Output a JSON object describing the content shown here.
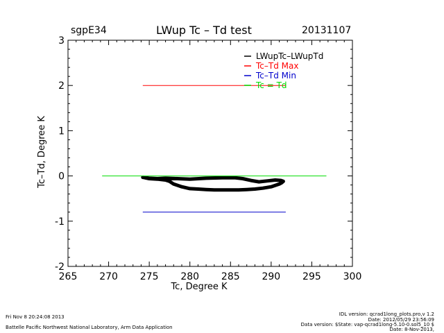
{
  "header": {
    "station": "sgpE34",
    "title": "LWup Tc – Td test",
    "date": "20131107"
  },
  "footer": {
    "left_line1": "Fri Nov  8 20:24:08 2013",
    "left_line2": "Battelle Pacific Northwest National Laboratory, Arm Data Application",
    "right_line1": "IDL version: qcrad1long_plots.pro,v 1.2",
    "right_line2": "Date: 2012/05/29 23:56:09",
    "right_line3": "Data version: $State: vap-qcrad1long-5.10-0.sol5_10 $",
    "right_line4": "Date: 8-Nov-2013,"
  },
  "chart_data": {
    "type": "line",
    "title": "LWup Tc – Td test",
    "xlabel": "Tc, Degree K",
    "ylabel": "Tc–Td, Degree K",
    "xlim": [
      265,
      300
    ],
    "ylim": [
      -2,
      3
    ],
    "xticks": [
      265,
      270,
      275,
      280,
      285,
      290,
      295,
      300
    ],
    "yticks": [
      -2,
      -1,
      0,
      1,
      2,
      3
    ],
    "legend_position": "top-right",
    "series": [
      {
        "name": "LWupTc–LWupTd",
        "color": "#000000",
        "style": "scatter-thick",
        "x": [
          274.2,
          275.0,
          276.0,
          277.0,
          277.5,
          278.0,
          279.0,
          280.0,
          281.0,
          282.0,
          283.0,
          284.0,
          285.0,
          286.0,
          287.0,
          288.0,
          289.0,
          290.0,
          290.5,
          291.0,
          291.3,
          291.5,
          291.2,
          290.5,
          289.5,
          288.5,
          287.5,
          286.5,
          285.5,
          284.0,
          282.0,
          280.0,
          278.5,
          277.0,
          276.0,
          275.0,
          274.2
        ],
        "y": [
          -0.03,
          -0.06,
          -0.07,
          -0.09,
          -0.12,
          -0.18,
          -0.24,
          -0.28,
          -0.29,
          -0.3,
          -0.31,
          -0.31,
          -0.31,
          -0.31,
          -0.3,
          -0.29,
          -0.27,
          -0.24,
          -0.21,
          -0.18,
          -0.15,
          -0.12,
          -0.1,
          -0.09,
          -0.11,
          -0.13,
          -0.1,
          -0.06,
          -0.04,
          -0.04,
          -0.05,
          -0.07,
          -0.06,
          -0.05,
          -0.06,
          -0.05,
          -0.03
        ]
      },
      {
        "name": "Tc–Td Max",
        "color": "#ff0000",
        "style": "line",
        "x": [
          274.2,
          291.8
        ],
        "y": [
          2.0,
          2.0
        ]
      },
      {
        "name": "Tc–Td Min",
        "color": "#0000cc",
        "style": "line",
        "x": [
          274.2,
          291.8
        ],
        "y": [
          -0.8,
          -0.8
        ]
      },
      {
        "name": "Tc = Td",
        "color": "#00dd00",
        "style": "line",
        "x": [
          269.2,
          296.8
        ],
        "y": [
          0.0,
          0.0
        ]
      }
    ]
  }
}
